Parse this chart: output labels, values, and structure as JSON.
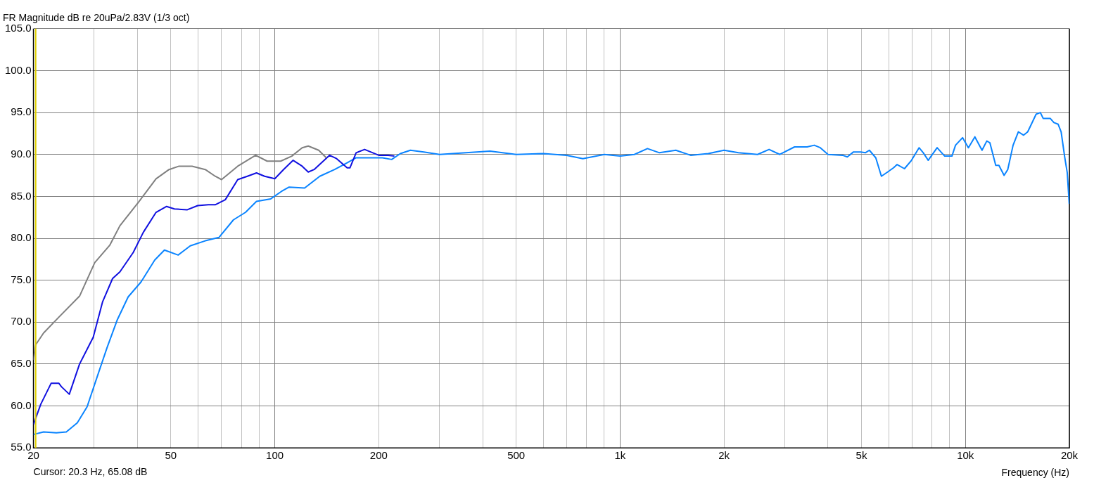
{
  "chart_data": {
    "type": "line",
    "title": "FR Magnitude dB re 20uPa/2.83V (1/3 oct)",
    "xlabel": "Frequency (Hz)",
    "log": "x",
    "grid": true,
    "legend": false,
    "marker": "none",
    "line_style": "solid",
    "xlim": [
      20,
      20000
    ],
    "ylim": [
      55,
      105
    ],
    "xticks": [
      20,
      {
        "value": 30,
        "label": null
      },
      {
        "value": 40,
        "label": null
      },
      50,
      {
        "value": 60,
        "label": null
      },
      {
        "value": 70,
        "label": null
      },
      {
        "value": 80,
        "label": null
      },
      {
        "value": 90,
        "label": null
      },
      100,
      200,
      {
        "value": 300,
        "label": null
      },
      {
        "value": 400,
        "label": null
      },
      500,
      {
        "value": 600,
        "label": null
      },
      {
        "value": 700,
        "label": null
      },
      {
        "value": 800,
        "label": null
      },
      {
        "value": 900,
        "label": null
      },
      {
        "value": 1000,
        "label": "1k"
      },
      {
        "value": 2000,
        "label": "2k"
      },
      {
        "value": 3000,
        "label": null
      },
      {
        "value": 4000,
        "label": null
      },
      {
        "value": 5000,
        "label": "5k"
      },
      {
        "value": 6000,
        "label": null
      },
      {
        "value": 7000,
        "label": null
      },
      {
        "value": 8000,
        "label": null
      },
      {
        "value": 9000,
        "label": null
      },
      {
        "value": 10000,
        "label": "10k"
      },
      {
        "value": 20000,
        "label": "20k"
      }
    ],
    "yticks": [
      {
        "value": 55,
        "label": "55.0"
      },
      {
        "value": 60,
        "label": "60.0"
      },
      {
        "value": 65,
        "label": "65.0"
      },
      {
        "value": 70,
        "label": "70.0"
      },
      {
        "value": 75,
        "label": "75.0"
      },
      {
        "value": 80,
        "label": "80.0"
      },
      {
        "value": 85,
        "label": "85.0"
      },
      {
        "value": 90,
        "label": "90.0"
      },
      {
        "value": 95,
        "label": "95.0"
      },
      {
        "value": 100,
        "label": "100.0"
      },
      {
        "value": 105,
        "label": "105.0"
      }
    ],
    "ref_lines": [
      {
        "axis": "x",
        "value": 20.3,
        "color": "#e0d000"
      }
    ],
    "annotations": [
      "Cursor: 20.3 Hz, 65.08 dB"
    ],
    "series": [
      {
        "color": "#808080",
        "x": [
          20,
          20.3,
          21.4,
          23.7,
          27.2,
          30.1,
          33.3,
          35.6,
          40.3,
          45.3,
          49.4,
          52.8,
          57.6,
          62.9,
          67.2,
          70.1,
          78.1,
          88,
          95,
          104,
          112,
          120,
          125,
          134,
          141
        ],
        "values": [
          65.5,
          67.3,
          68.7,
          70.6,
          73.1,
          77.1,
          79.2,
          81.5,
          84.3,
          87.1,
          88.2,
          88.6,
          88.6,
          88.2,
          87.4,
          87.0,
          88.6,
          89.9,
          89.2,
          89.2,
          89.8,
          90.8,
          91.0,
          90.5,
          89.6
        ]
      },
      {
        "color": "#1010e0",
        "x": [
          20,
          21,
          22.5,
          23.7,
          24.1,
          25.4,
          27.2,
          29.8,
          31.7,
          33.9,
          35.6,
          38.9,
          41.6,
          45.3,
          48.6,
          51.2,
          55.8,
          59.8,
          64.2,
          67.2,
          71.9,
          78.1,
          83.3,
          88.5,
          93.4,
          100,
          106,
          113,
          120,
          125,
          130,
          144,
          151,
          162,
          165,
          172,
          182,
          200,
          213,
          222
        ],
        "values": [
          57.8,
          60.2,
          62.7,
          62.7,
          62.3,
          61.4,
          65.0,
          68.2,
          72.4,
          75.2,
          76.0,
          78.3,
          80.7,
          83.1,
          83.8,
          83.5,
          83.4,
          83.9,
          84.0,
          84.0,
          84.6,
          87.0,
          87.4,
          87.8,
          87.4,
          87.1,
          88.2,
          89.3,
          88.6,
          87.9,
          88.2,
          89.9,
          89.5,
          88.4,
          88.4,
          90.2,
          90.6,
          89.9,
          89.9,
          89.8
        ]
      },
      {
        "color": "#0a84ff",
        "x": [
          20,
          21.4,
          23.3,
          24.9,
          26.8,
          28.6,
          30.6,
          32.7,
          35,
          37.6,
          41,
          44.9,
          47.9,
          52.5,
          56.9,
          62.9,
          68.9,
          75.9,
          82.3,
          88.5,
          97.3,
          104.6,
          110,
          122,
          135,
          149,
          162,
          172,
          182,
          205,
          218,
          231,
          247,
          270,
          300,
          420,
          500,
          600,
          700,
          780,
          900,
          1000,
          1100,
          1200,
          1300,
          1450,
          1600,
          1800,
          2000,
          2200,
          2500,
          2700,
          2900,
          3200,
          3480,
          3650,
          3800,
          4000,
          4410,
          4550,
          4740,
          4970,
          5130,
          5270,
          5500,
          5710,
          5950,
          6190,
          6340,
          6660,
          6980,
          7340,
          7550,
          7800,
          8280,
          8710,
          9140,
          9360,
          9810,
          10200,
          10650,
          11170,
          11530,
          11770,
          12240,
          12500,
          12940,
          13260,
          13740,
          14230,
          14740,
          15150,
          15520,
          16020,
          16480,
          16790,
          17600,
          18040,
          18560,
          18930,
          19400,
          19720,
          19980
        ],
        "values": [
          56.6,
          56.9,
          56.8,
          56.9,
          58.0,
          59.9,
          63.5,
          67.0,
          70.3,
          73.0,
          74.8,
          77.4,
          78.6,
          78.0,
          79.1,
          79.7,
          80.1,
          82.2,
          83.1,
          84.4,
          84.7,
          85.6,
          86.1,
          86.0,
          87.4,
          88.2,
          89.0,
          89.6,
          89.6,
          89.6,
          89.4,
          90.1,
          90.5,
          90.3,
          90.0,
          90.4,
          90.0,
          90.1,
          89.9,
          89.5,
          90.0,
          89.8,
          90.0,
          90.7,
          90.2,
          90.5,
          89.9,
          90.1,
          90.5,
          90.2,
          90.0,
          90.6,
          90.0,
          90.9,
          90.9,
          91.1,
          90.8,
          90.0,
          89.9,
          89.7,
          90.3,
          90.3,
          90.2,
          90.5,
          89.6,
          87.4,
          87.9,
          88.4,
          88.8,
          88.3,
          89.3,
          90.8,
          90.2,
          89.3,
          90.8,
          89.8,
          89.8,
          91.1,
          92.0,
          90.8,
          92.1,
          90.5,
          91.6,
          91.4,
          88.7,
          88.7,
          87.5,
          88.2,
          91.1,
          92.7,
          92.3,
          92.7,
          93.6,
          94.8,
          95.0,
          94.3,
          94.3,
          93.8,
          93.6,
          92.7,
          89.6,
          87.8,
          84.1
        ]
      }
    ]
  }
}
